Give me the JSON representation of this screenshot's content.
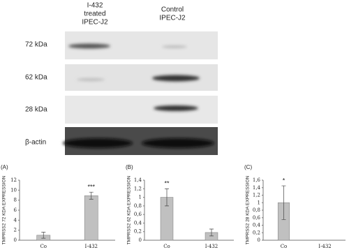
{
  "blot": {
    "lanes": [
      [
        "I-432",
        "treated",
        "IPEC-J2"
      ],
      [
        "Control",
        "IPEC-J2"
      ]
    ],
    "bands": [
      "72 kDa",
      "62 kDa",
      "28 kDa",
      "β-actin"
    ]
  },
  "chart_data": [
    {
      "type": "bar",
      "panel": "(A)",
      "y_label": "TMPRSS2 72 KDA EXPRESSION",
      "categories": [
        "Co",
        "I-432"
      ],
      "values": [
        1.0,
        8.9
      ],
      "errors": [
        0.6,
        0.7
      ],
      "annotations": [
        null,
        "***"
      ],
      "color": "#c0c0c0",
      "ylim": [
        0,
        12
      ],
      "yticks": [
        0,
        2,
        4,
        6,
        8,
        10,
        12
      ]
    },
    {
      "type": "bar",
      "panel": "(B)",
      "y_label": "TMPRSS2 62 KDA EXPRESSION",
      "categories": [
        "Co",
        "I-432"
      ],
      "values": [
        1.0,
        0.18
      ],
      "errors": [
        0.2,
        0.08
      ],
      "annotations": [
        "**",
        null
      ],
      "color": "#c0c0c0",
      "ylim": [
        0,
        1.4
      ],
      "yticks": [
        0,
        {
          "value": 0.2,
          "label": "0,2"
        },
        {
          "value": 0.4,
          "label": "0,4"
        },
        {
          "value": 0.6,
          "label": "0,6"
        },
        {
          "value": 0.8,
          "label": "0,8"
        },
        1,
        {
          "value": 1.2,
          "label": "1,2"
        },
        {
          "value": 1.4,
          "label": "1,4"
        }
      ]
    },
    {
      "type": "bar",
      "panel": "(C)",
      "y_label": "TMPRSS2 28 KDA EXPRESSION",
      "categories": [
        "Co",
        "I-432"
      ],
      "values": [
        1.0,
        0
      ],
      "errors": [
        0.45,
        0
      ],
      "annotations": [
        "*",
        null
      ],
      "color": "#c0c0c0",
      "ylim": [
        0,
        1.6
      ],
      "yticks": [
        0,
        {
          "value": 0.2,
          "label": "0,2"
        },
        {
          "value": 0.4,
          "label": "0,4"
        },
        {
          "value": 0.6,
          "label": "0,6"
        },
        {
          "value": 0.8,
          "label": "0,8"
        },
        1,
        {
          "value": 1.2,
          "label": "1,2"
        },
        {
          "value": 1.4,
          "label": "1,4"
        },
        {
          "value": 1.6,
          "label": "1,6"
        }
      ]
    }
  ]
}
